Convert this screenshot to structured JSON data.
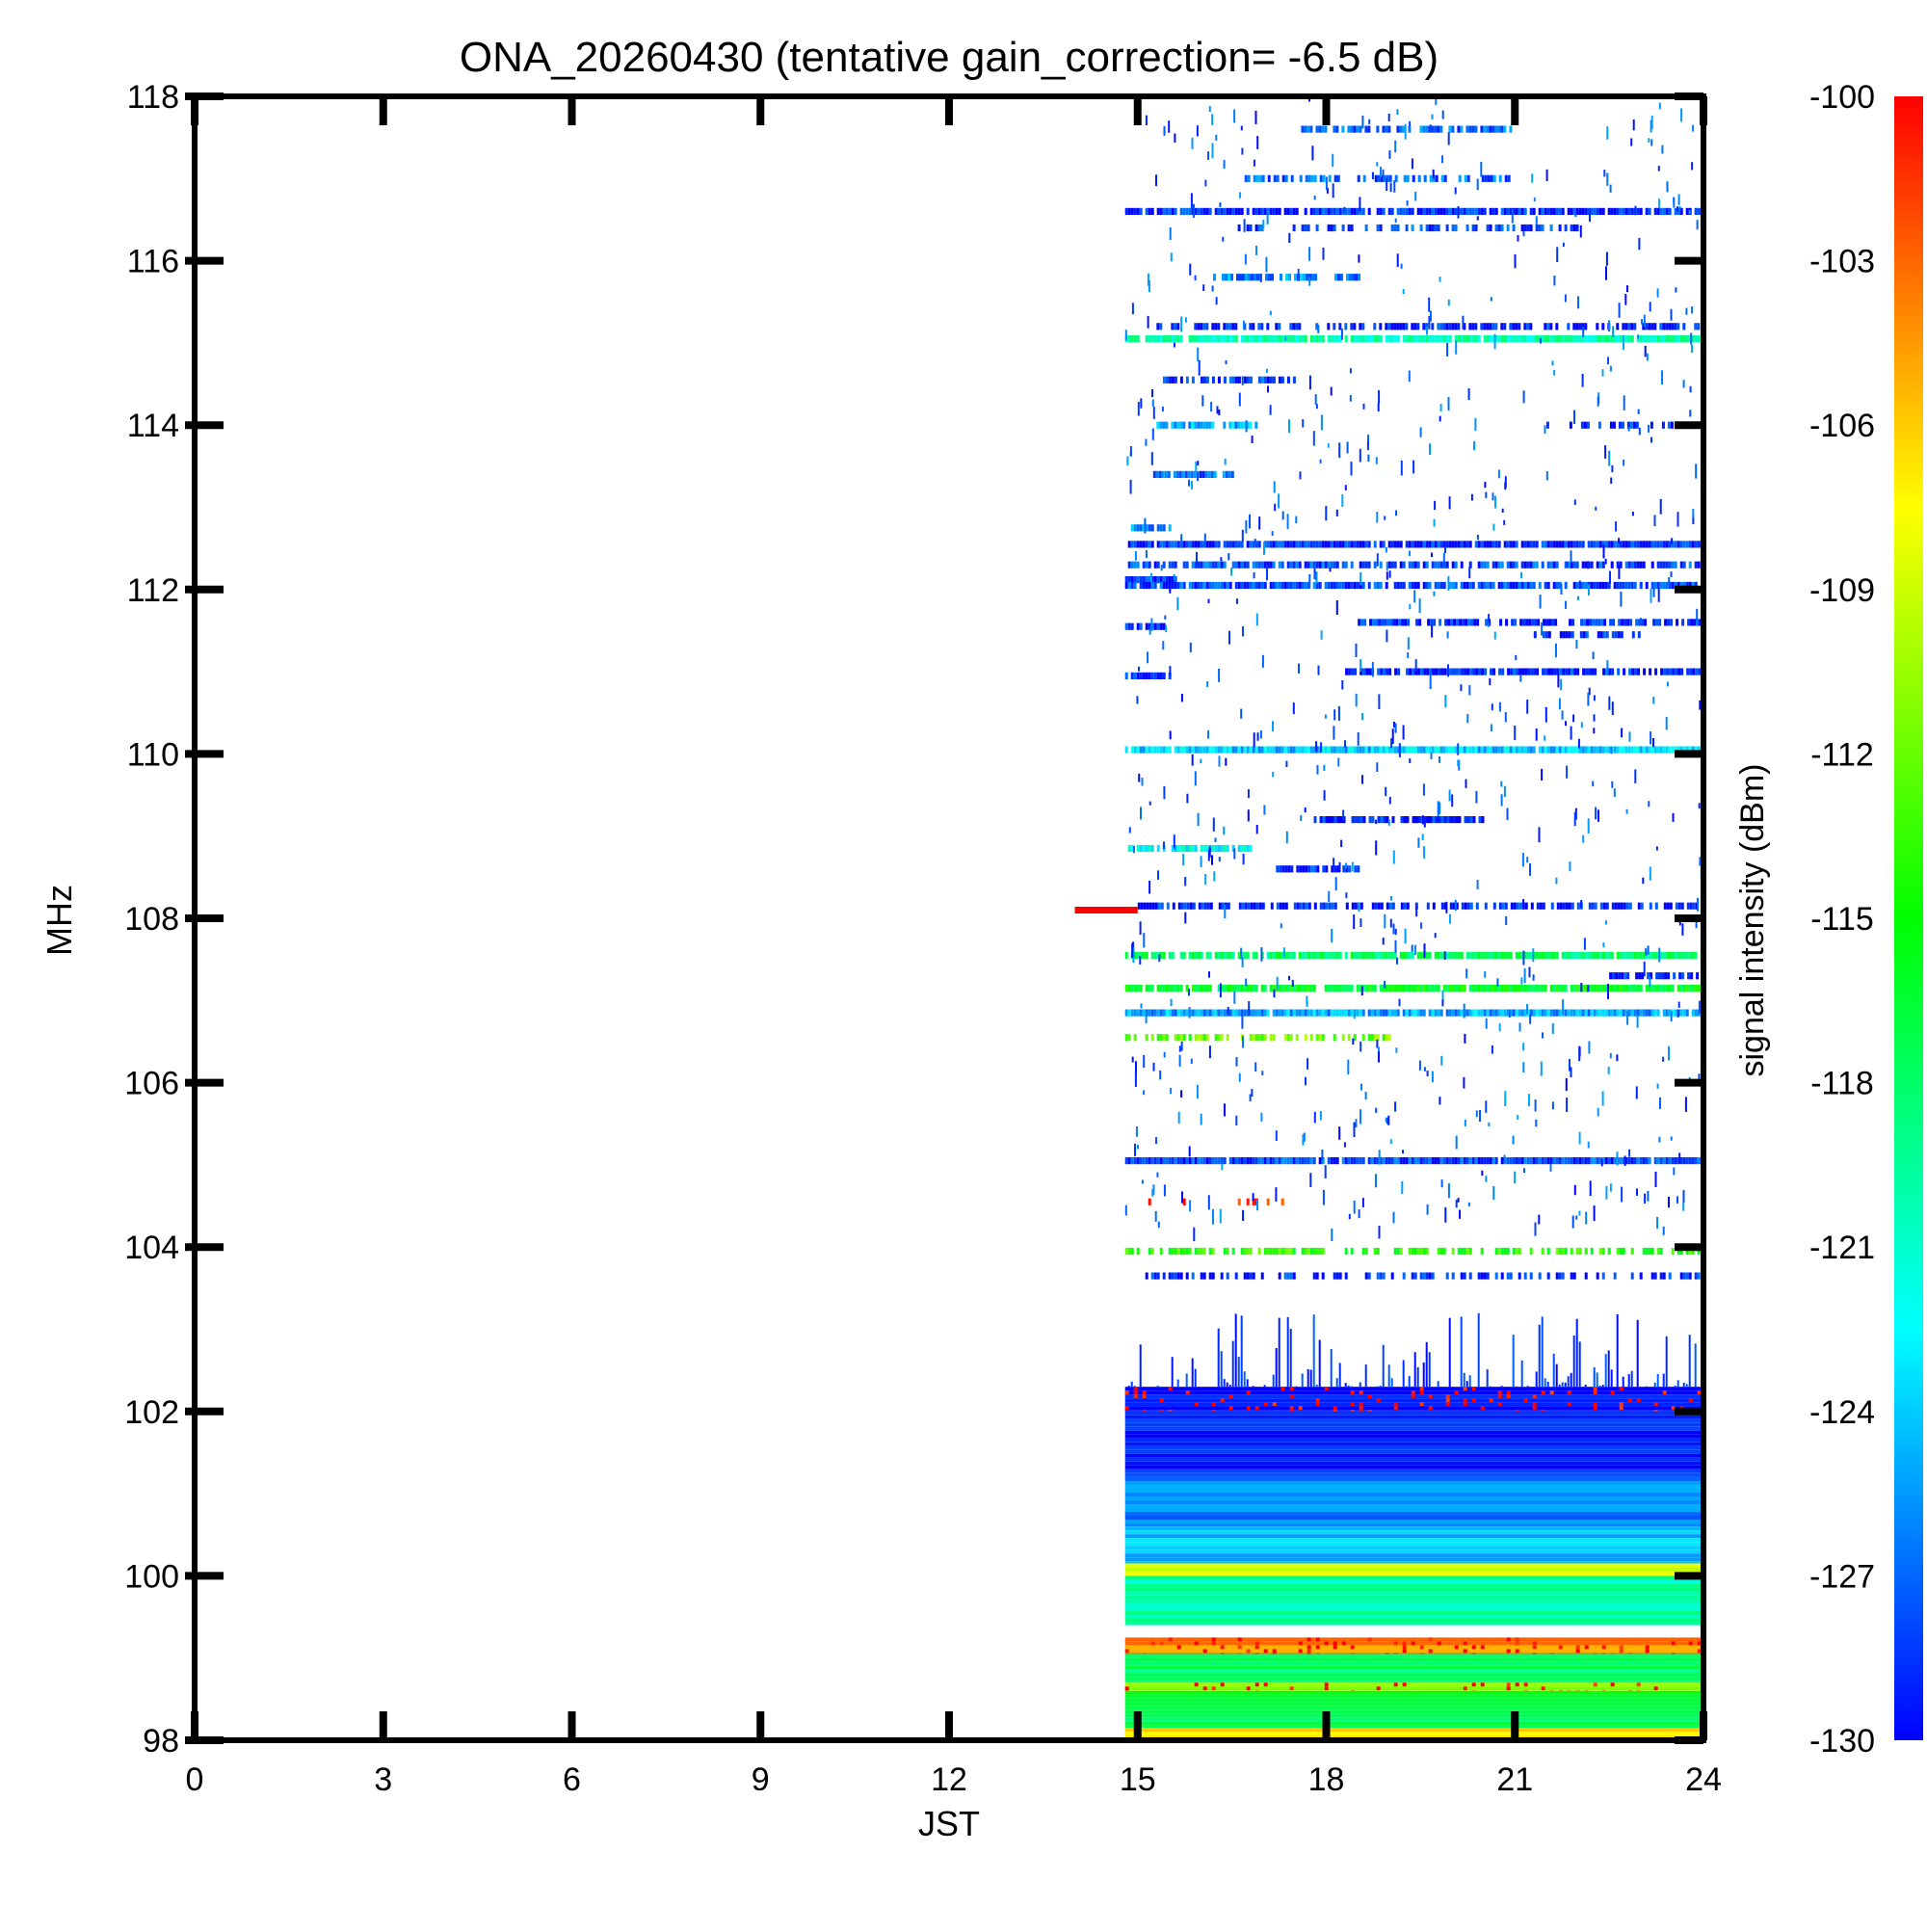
{
  "chart_data": {
    "type": "heatmap",
    "title": "ONA_20260430 (tentative gain_correction= -6.5 dB)",
    "xlabel": "JST",
    "ylabel": "MHz",
    "colorbar_label": "signal intensity (dBm)",
    "xlim": [
      0,
      24
    ],
    "ylim": [
      98,
      118
    ],
    "x_ticks": [
      0,
      3,
      6,
      9,
      12,
      15,
      18,
      21,
      24
    ],
    "x_tick_labels": [
      "0",
      "3",
      "6",
      "9",
      "12",
      "15",
      "18",
      "21",
      "24"
    ],
    "y_ticks": [
      98,
      100,
      102,
      104,
      106,
      108,
      110,
      112,
      114,
      116,
      118
    ],
    "y_tick_labels": [
      "98",
      "100",
      "102",
      "104",
      "106",
      "108",
      "110",
      "112",
      "114",
      "116",
      "118"
    ],
    "colorbar_range": [
      -130,
      -100
    ],
    "colorbar_ticks": [
      -100,
      -103,
      -106,
      -109,
      -112,
      -115,
      -118,
      -121,
      -124,
      -127,
      -130
    ],
    "colorbar_tick_labels": [
      "-100",
      "-103",
      "-106",
      "-109",
      "-112",
      "-115",
      "-118",
      "-121",
      "-124",
      "-127",
      "-130"
    ],
    "colormap": [
      "#0000ff",
      "#0080ff",
      "#00ffff",
      "#00ff80",
      "#00ff00",
      "#80ff00",
      "#ffff00",
      "#ff8000",
      "#ff0000"
    ],
    "data_time_range": [
      14.8,
      24
    ],
    "marker": {
      "time_range": [
        14.0,
        15.0
      ],
      "freq": 108.1,
      "color": "#ff0000"
    },
    "bands": [
      {
        "freq": 117.6,
        "t0": 17.6,
        "t1": 21.0,
        "level": -127,
        "density": 0.7
      },
      {
        "freq": 117.0,
        "t0": 16.7,
        "t1": 21.0,
        "level": -127,
        "density": 0.6
      },
      {
        "freq": 116.6,
        "t0": 14.8,
        "t1": 24.0,
        "level": -129,
        "density": 0.85
      },
      {
        "freq": 116.4,
        "t0": 16.5,
        "t1": 22.0,
        "level": -128,
        "density": 0.5
      },
      {
        "freq": 115.8,
        "t0": 16.2,
        "t1": 18.5,
        "level": -126,
        "density": 0.6
      },
      {
        "freq": 115.2,
        "t0": 15.3,
        "t1": 24.0,
        "level": -129,
        "density": 0.6
      },
      {
        "freq": 115.05,
        "t0": 14.8,
        "t1": 24.0,
        "level": -120,
        "density": 0.95
      },
      {
        "freq": 114.55,
        "t0": 15.4,
        "t1": 17.5,
        "level": -128,
        "density": 0.7
      },
      {
        "freq": 114.0,
        "t0": 15.3,
        "t1": 16.9,
        "level": -125,
        "density": 0.8
      },
      {
        "freq": 114.0,
        "t0": 21.5,
        "t1": 24.0,
        "level": -129,
        "density": 0.5
      },
      {
        "freq": 113.4,
        "t0": 15.2,
        "t1": 16.5,
        "level": -127,
        "density": 0.8
      },
      {
        "freq": 112.75,
        "t0": 14.8,
        "t1": 15.5,
        "level": -126,
        "density": 0.8
      },
      {
        "freq": 112.55,
        "t0": 14.8,
        "t1": 24.0,
        "level": -129,
        "density": 0.9
      },
      {
        "freq": 112.3,
        "t0": 14.8,
        "t1": 24.0,
        "level": -128,
        "density": 0.75
      },
      {
        "freq": 112.12,
        "t0": 14.8,
        "t1": 15.6,
        "level": -129,
        "density": 0.9
      },
      {
        "freq": 112.05,
        "t0": 14.8,
        "t1": 24.0,
        "level": -128,
        "density": 0.85
      },
      {
        "freq": 111.6,
        "t0": 18.5,
        "t1": 24.0,
        "level": -129,
        "density": 0.75
      },
      {
        "freq": 111.55,
        "t0": 14.8,
        "t1": 15.4,
        "level": -129,
        "density": 0.9
      },
      {
        "freq": 111.45,
        "t0": 21.3,
        "t1": 23.0,
        "level": -129,
        "density": 0.6
      },
      {
        "freq": 111.0,
        "t0": 18.3,
        "t1": 24.0,
        "level": -129,
        "density": 0.85
      },
      {
        "freq": 110.95,
        "t0": 14.8,
        "t1": 15.5,
        "level": -129,
        "density": 0.9
      },
      {
        "freq": 110.05,
        "t0": 14.8,
        "t1": 24.0,
        "level": -124,
        "density": 0.95
      },
      {
        "freq": 109.2,
        "t0": 17.8,
        "t1": 20.5,
        "level": -129,
        "density": 0.8
      },
      {
        "freq": 108.85,
        "t0": 14.8,
        "t1": 16.8,
        "level": -122,
        "density": 0.85
      },
      {
        "freq": 108.6,
        "t0": 17.2,
        "t1": 18.5,
        "level": -129,
        "density": 0.8
      },
      {
        "freq": 108.15,
        "t0": 15.0,
        "t1": 24.0,
        "level": -129,
        "density": 0.6
      },
      {
        "freq": 107.55,
        "t0": 14.8,
        "t1": 24.0,
        "level": -118,
        "density": 0.9
      },
      {
        "freq": 107.3,
        "t0": 22.5,
        "t1": 24.0,
        "level": -129,
        "density": 0.8
      },
      {
        "freq": 107.15,
        "t0": 14.8,
        "t1": 24.0,
        "level": -116,
        "density": 0.95
      },
      {
        "freq": 106.85,
        "t0": 14.8,
        "t1": 24.0,
        "level": -125,
        "density": 0.95
      },
      {
        "freq": 106.55,
        "t0": 14.8,
        "t1": 19.0,
        "level": -112,
        "density": 0.6
      },
      {
        "freq": 105.05,
        "t0": 14.8,
        "t1": 24.0,
        "level": -128,
        "density": 0.95
      },
      {
        "freq": 104.55,
        "t0": 14.8,
        "t1": 17.5,
        "level": -101,
        "density": 0.1
      },
      {
        "freq": 103.95,
        "t0": 14.8,
        "t1": 24.0,
        "level": -114,
        "density": 0.55
      },
      {
        "freq": 103.65,
        "t0": 14.8,
        "t1": 24.0,
        "level": -129,
        "density": 0.45
      }
    ],
    "noise_floor": [
      {
        "f0": 102.0,
        "f1": 102.3,
        "level": -130,
        "density": 0.95
      },
      {
        "f0": 101.2,
        "f1": 102.0,
        "level": -129,
        "density": 1.0
      },
      {
        "f0": 100.6,
        "f1": 101.2,
        "level": -126,
        "density": 1.0
      },
      {
        "f0": 100.15,
        "f1": 100.6,
        "level": -124,
        "density": 1.0
      },
      {
        "f0": 100.0,
        "f1": 100.15,
        "level": -108,
        "density": 1.0
      },
      {
        "f0": 99.4,
        "f1": 100.0,
        "level": -120,
        "density": 1.0
      },
      {
        "f0": 99.05,
        "f1": 99.25,
        "level": -104,
        "density": 0.7
      },
      {
        "f0": 98.7,
        "f1": 99.05,
        "level": -118,
        "density": 1.0
      },
      {
        "f0": 98.6,
        "f1": 98.7,
        "level": -110,
        "density": 0.9
      },
      {
        "f0": 98.15,
        "f1": 98.6,
        "level": -117,
        "density": 1.0
      },
      {
        "f0": 98.0,
        "f1": 98.15,
        "level": -107,
        "density": 1.0
      }
    ],
    "grid": false,
    "colorbar_position": "right"
  }
}
